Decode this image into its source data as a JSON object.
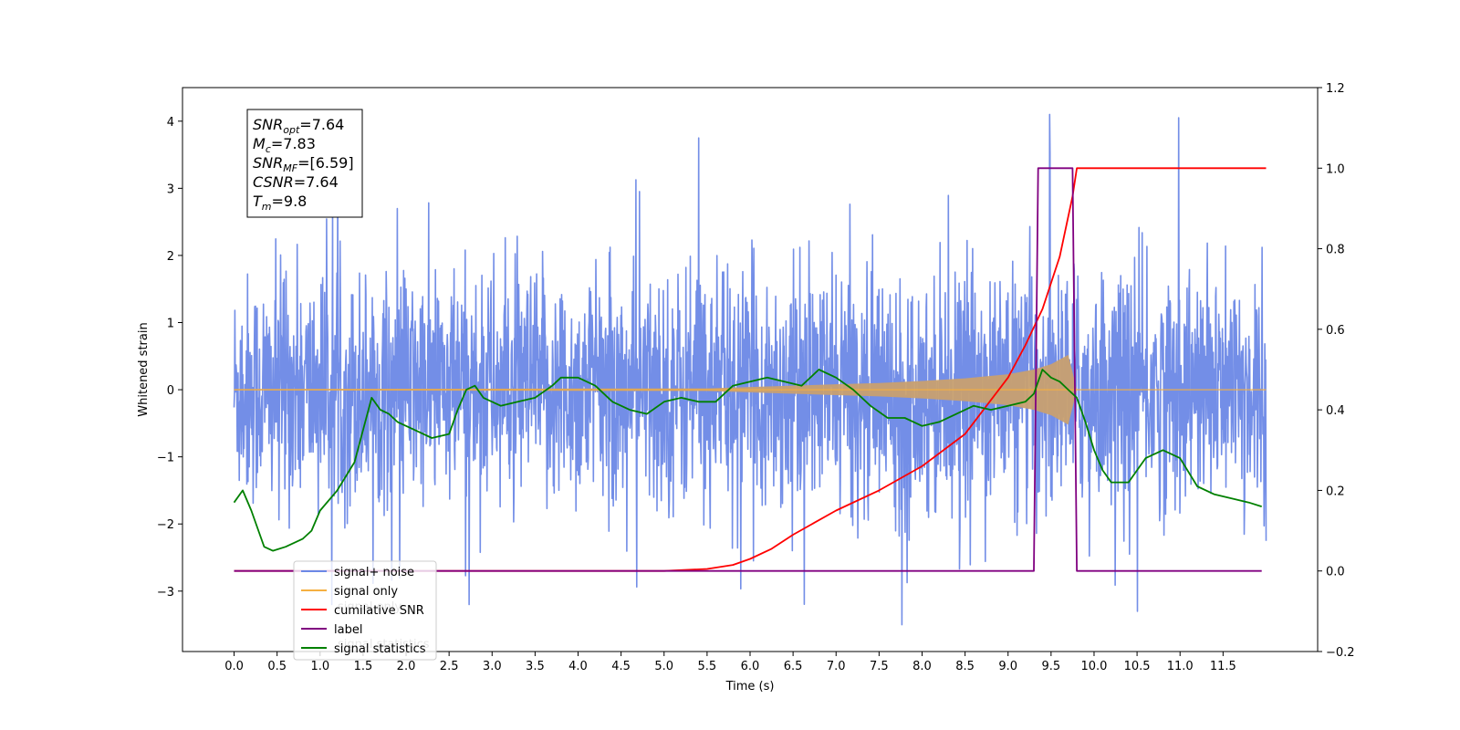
{
  "chart_data": {
    "type": "line",
    "xlabel": "Time (s)",
    "ylabel": "Whitened strain",
    "xlim": [
      -0.6,
      12.6
    ],
    "ylim": [
      -3.9,
      4.5
    ],
    "y2lim": [
      -0.2,
      1.2
    ],
    "xticks": [
      0.0,
      0.5,
      1.0,
      1.5,
      2.0,
      2.5,
      3.0,
      3.5,
      4.0,
      4.5,
      5.0,
      5.5,
      6.0,
      6.5,
      7.0,
      7.5,
      8.0,
      8.5,
      9.0,
      9.5,
      10.0,
      10.5,
      11.0,
      11.5
    ],
    "xtick_labels": [
      "0.0",
      "0.5",
      "1.0",
      "1.5",
      "2.0",
      "2.5",
      "3.0",
      "3.5",
      "4.0",
      "4.5",
      "5.0",
      "5.5",
      "6.0",
      "6.5",
      "7.0",
      "7.5",
      "8.0",
      "8.5",
      "9.0",
      "9.5",
      "10.0",
      "10.5",
      "11.0",
      "11.5"
    ],
    "yticks": [
      -3,
      -2,
      -1,
      0,
      1,
      2,
      3,
      4
    ],
    "ytick_labels": [
      "−3",
      "−2",
      "−1",
      "0",
      "1",
      "2",
      "3",
      "4"
    ],
    "y2ticks": [
      -0.2,
      0.0,
      0.2,
      0.4,
      0.6,
      0.8,
      1.0,
      1.2
    ],
    "y2tick_labels": [
      "−0.2",
      "0.0",
      "0.2",
      "0.4",
      "0.6",
      "0.8",
      "1.0",
      "1.2"
    ],
    "colors": {
      "signal_noise": "#6b88e6",
      "signal_only": "#f5b041",
      "signal_fill": "#c8a070",
      "cumulative": "#ff0000",
      "label": "#800080",
      "statistics": "#008000"
    },
    "noise": {
      "x_start": 0.0,
      "x_end": 12.0,
      "samples": 2600,
      "std": 0.85,
      "spike_peaks": [
        4.1,
        -3.5,
        4.05,
        -3.3,
        3.75
      ]
    },
    "signal_only_envelope": {
      "x": [
        0.0,
        5.5,
        6.0,
        6.5,
        7.0,
        7.5,
        8.0,
        8.5,
        9.0,
        9.3,
        9.5,
        9.7,
        9.8
      ],
      "amp": [
        0.01,
        0.02,
        0.04,
        0.06,
        0.08,
        0.1,
        0.13,
        0.17,
        0.23,
        0.3,
        0.38,
        0.52,
        0.0
      ]
    },
    "series": [
      {
        "name": "cumilative SNR",
        "axis": "right",
        "x": [
          0.0,
          5.0,
          5.5,
          5.8,
          6.0,
          6.25,
          6.5,
          6.75,
          7.0,
          7.5,
          8.0,
          8.5,
          9.0,
          9.2,
          9.4,
          9.6,
          9.75,
          9.8,
          12.0
        ],
        "y": [
          0.0,
          0.0,
          0.005,
          0.015,
          0.03,
          0.055,
          0.09,
          0.12,
          0.15,
          0.2,
          0.26,
          0.34,
          0.48,
          0.56,
          0.65,
          0.78,
          0.93,
          1.0,
          1.0
        ]
      },
      {
        "name": "label",
        "axis": "right",
        "x": [
          0.0,
          9.3,
          9.35,
          9.75,
          9.8,
          11.95
        ],
        "y": [
          0.0,
          0.0,
          1.0,
          1.0,
          0.0,
          0.0
        ]
      },
      {
        "name": "signal statistics",
        "axis": "right",
        "x": [
          0.0,
          0.1,
          0.2,
          0.3,
          0.35,
          0.45,
          0.6,
          0.8,
          0.9,
          1.0,
          1.2,
          1.4,
          1.5,
          1.6,
          1.7,
          1.8,
          1.9,
          2.0,
          2.1,
          2.3,
          2.5,
          2.6,
          2.7,
          2.8,
          2.9,
          3.1,
          3.3,
          3.5,
          3.7,
          3.8,
          4.0,
          4.2,
          4.4,
          4.6,
          4.8,
          5.0,
          5.2,
          5.4,
          5.6,
          5.8,
          6.0,
          6.2,
          6.4,
          6.6,
          6.8,
          7.0,
          7.2,
          7.4,
          7.6,
          7.8,
          8.0,
          8.2,
          8.4,
          8.6,
          8.8,
          9.0,
          9.2,
          9.3,
          9.4,
          9.5,
          9.6,
          9.7,
          9.8,
          9.9,
          10.0,
          10.1,
          10.2,
          10.4,
          10.6,
          10.8,
          11.0,
          11.2,
          11.4,
          11.6,
          11.8,
          11.95
        ],
        "y": [
          0.17,
          0.2,
          0.15,
          0.09,
          0.06,
          0.05,
          0.06,
          0.08,
          0.1,
          0.15,
          0.2,
          0.27,
          0.35,
          0.43,
          0.4,
          0.39,
          0.37,
          0.36,
          0.35,
          0.33,
          0.34,
          0.4,
          0.45,
          0.46,
          0.43,
          0.41,
          0.42,
          0.43,
          0.46,
          0.48,
          0.48,
          0.46,
          0.42,
          0.4,
          0.39,
          0.42,
          0.43,
          0.42,
          0.42,
          0.46,
          0.47,
          0.48,
          0.47,
          0.46,
          0.5,
          0.48,
          0.45,
          0.41,
          0.38,
          0.38,
          0.36,
          0.37,
          0.39,
          0.41,
          0.4,
          0.41,
          0.42,
          0.44,
          0.5,
          0.48,
          0.47,
          0.45,
          0.43,
          0.37,
          0.3,
          0.25,
          0.22,
          0.22,
          0.28,
          0.3,
          0.28,
          0.21,
          0.19,
          0.18,
          0.17,
          0.16
        ]
      }
    ],
    "legend": {
      "placement": "lower-left",
      "entries": [
        {
          "label": "signal+ noise",
          "color": "#6b88e6"
        },
        {
          "label": "signal only",
          "color": "#f5b041"
        },
        {
          "label": "cumilative SNR",
          "color": "#ff0000"
        },
        {
          "label": "label",
          "color": "#800080"
        },
        {
          "label": "signal statistics",
          "color": "#008000"
        }
      ],
      "ghost_text": [
        "signal only",
        "signal statistics"
      ]
    },
    "info_box": {
      "placement": "top-left",
      "lines": [
        {
          "main": "SNR",
          "sub": "opt",
          "rest": "=7.64"
        },
        {
          "main": "M",
          "sub": "c",
          "rest": "=7.83"
        },
        {
          "main": "SNR",
          "sub": "MF",
          "rest": "=[6.59]"
        },
        {
          "main": "CSNR",
          "sub": "",
          "rest": "=7.64"
        },
        {
          "main": "T",
          "sub": "m",
          "rest": "=9.8"
        }
      ]
    }
  }
}
